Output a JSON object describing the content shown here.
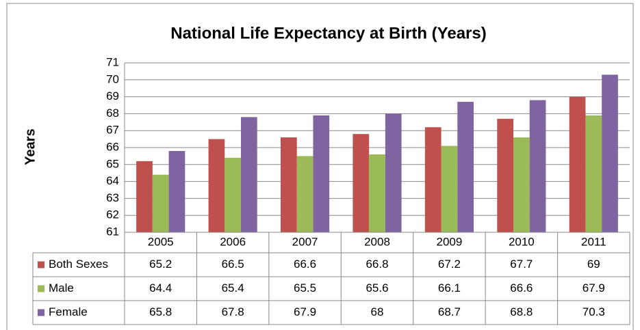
{
  "chart_data": {
    "type": "bar",
    "title": "National Life Expectancy at Birth (Years)",
    "y_label": "Years",
    "categories": [
      "2005",
      "2006",
      "2007",
      "2008",
      "2009",
      "2010",
      "2011"
    ],
    "series": [
      {
        "name": "Both Sexes",
        "color": "#c0504d",
        "values": [
          65.2,
          66.5,
          66.6,
          66.8,
          67.2,
          67.7,
          69
        ]
      },
      {
        "name": "Male",
        "color": "#9bbb59",
        "values": [
          64.4,
          65.4,
          65.5,
          65.6,
          66.1,
          66.6,
          67.9
        ]
      },
      {
        "name": "Female",
        "color": "#8064a2",
        "values": [
          65.8,
          67.8,
          67.9,
          68,
          68.7,
          68.8,
          70.3
        ]
      }
    ],
    "ylim": [
      61,
      71
    ],
    "yticks": [
      61,
      62,
      63,
      64,
      65,
      66,
      67,
      68,
      69,
      70,
      71
    ],
    "grid": true
  }
}
